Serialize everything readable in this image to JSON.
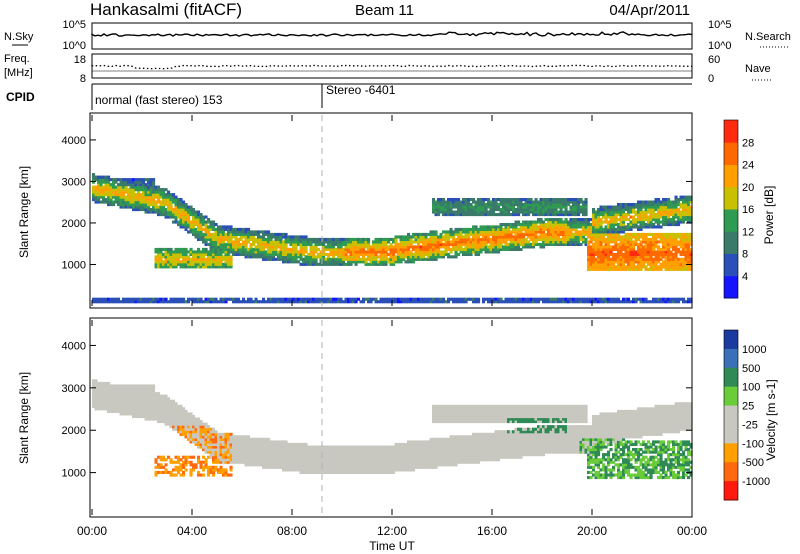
{
  "header": {
    "station": "Hankasalmi (fitACF)",
    "beam": "Beam 11",
    "date": "04/Apr/2011"
  },
  "nsky": {
    "label": "N.Sky",
    "ticks": [
      "10^5",
      "10^0"
    ]
  },
  "nsearch": {
    "label": "N.Search",
    "ticks": [
      "10^5",
      "10^0"
    ]
  },
  "freq": {
    "label": "Freq.",
    "unit": "[MHz]",
    "ticks": [
      "18",
      "8"
    ]
  },
  "nave": {
    "label": "Nave",
    "ticks": [
      "60",
      "0"
    ]
  },
  "cpid": {
    "label": "CPID",
    "modes": [
      {
        "text": "normal (fast stereo) 153"
      },
      {
        "text": "Stereo -6401"
      }
    ]
  },
  "chart_data": [
    {
      "type": "heatmap",
      "ylabel": "Slant Range [km]",
      "yticks": [
        "1000",
        "2000",
        "3000",
        "4000"
      ],
      "ylim": [
        0,
        4600
      ],
      "xlim_hours": [
        0,
        24
      ],
      "scale": {
        "label": "Power [dB]",
        "ticks": [
          "4",
          "8",
          "12",
          "16",
          "20",
          "24",
          "28"
        ],
        "colors": [
          "#1414ff",
          "#2a4fb8",
          "#3a7a6a",
          "#2f9a52",
          "#c8c000",
          "#ffa000",
          "#ff6a00",
          "#ff2a10"
        ]
      }
    },
    {
      "type": "heatmap",
      "ylabel": "Slant Range [km]",
      "yticks": [
        "1000",
        "2000",
        "3000",
        "4000"
      ],
      "ylim": [
        0,
        4600
      ],
      "xlim_hours": [
        0,
        24
      ],
      "scale": {
        "label": "Velocity [m s-1]",
        "ticks": [
          "1000",
          "500",
          "100",
          "25",
          "-25",
          "-100",
          "-500",
          "-1000"
        ],
        "colors": [
          "#1a3aa0",
          "#3a70b8",
          "#2f8a55",
          "#6bcc3a",
          "#c8c8c0",
          "#c8c8c0",
          "#ffa000",
          "#ff6a10",
          "#ff1a10"
        ]
      }
    }
  ],
  "xaxis": {
    "label": "Time UT",
    "ticks": [
      "00:00",
      "04:00",
      "08:00",
      "12:00",
      "16:00",
      "20:00",
      "00:00"
    ]
  }
}
